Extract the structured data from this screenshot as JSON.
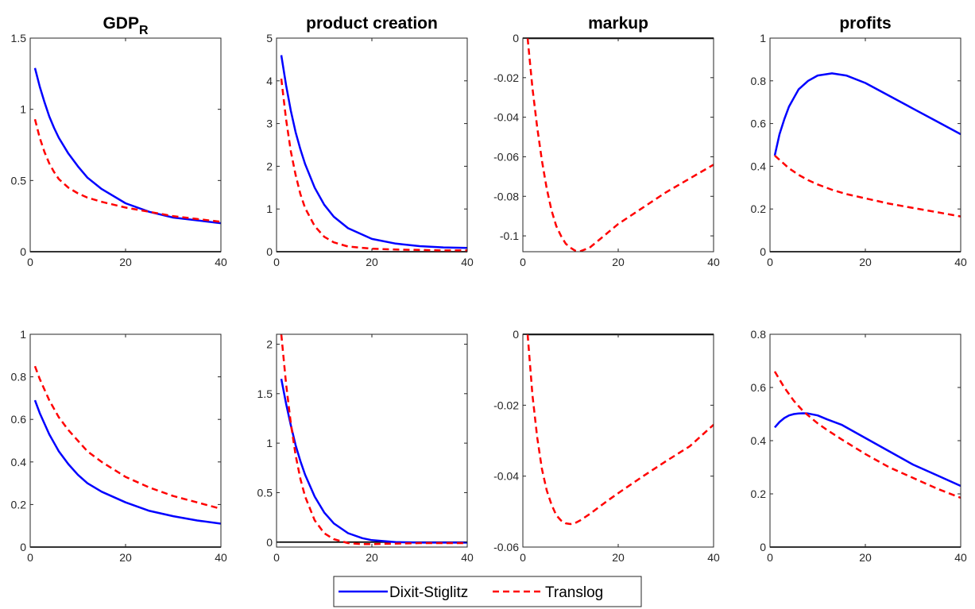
{
  "colors": {
    "dixit": "#0000FF",
    "translog": "#FF0000",
    "zero_line": "#000000",
    "axes": "#262626"
  },
  "legend": {
    "placement": "bottom-center",
    "entries": [
      {
        "label": "Dixit-Stiglitz",
        "color": "#0000FF",
        "style": "solid"
      },
      {
        "label": "Translog",
        "color": "#FF0000",
        "style": "dashed"
      }
    ]
  },
  "chart_data": [
    {
      "type": "line",
      "title": "GDP",
      "title_subscript": "R",
      "xlim": [
        0,
        40
      ],
      "ylim": [
        0,
        1.5
      ],
      "yticks": [
        "0",
        "0.5",
        "1",
        "1.5"
      ],
      "xticks": [
        "0",
        "20",
        "40"
      ],
      "x": [
        1,
        2,
        3,
        4,
        5,
        6,
        8,
        10,
        12,
        15,
        20,
        25,
        30,
        35,
        40
      ],
      "series": [
        {
          "name": "Dixit-Stiglitz",
          "values": [
            1.29,
            1.16,
            1.05,
            0.95,
            0.87,
            0.8,
            0.69,
            0.6,
            0.52,
            0.44,
            0.34,
            0.28,
            0.24,
            0.22,
            0.2
          ]
        },
        {
          "name": "Translog",
          "values": [
            0.93,
            0.8,
            0.7,
            0.62,
            0.56,
            0.51,
            0.45,
            0.41,
            0.38,
            0.35,
            0.31,
            0.28,
            0.25,
            0.23,
            0.21
          ]
        }
      ]
    },
    {
      "type": "line",
      "title": "product creation",
      "xlim": [
        0,
        40
      ],
      "ylim": [
        0,
        5
      ],
      "yticks": [
        "0",
        "1",
        "2",
        "3",
        "4",
        "5"
      ],
      "xticks": [
        "0",
        "20",
        "40"
      ],
      "x": [
        1,
        2,
        3,
        4,
        5,
        6,
        8,
        10,
        12,
        15,
        20,
        25,
        30,
        35,
        40
      ],
      "series": [
        {
          "name": "Dixit-Stiglitz",
          "values": [
            4.6,
            3.9,
            3.3,
            2.8,
            2.4,
            2.05,
            1.5,
            1.1,
            0.82,
            0.55,
            0.3,
            0.19,
            0.13,
            0.1,
            0.09
          ]
        },
        {
          "name": "Translog",
          "values": [
            4.05,
            3.1,
            2.35,
            1.8,
            1.35,
            1.02,
            0.6,
            0.35,
            0.22,
            0.12,
            0.07,
            0.05,
            0.04,
            0.03,
            0.03
          ]
        }
      ]
    },
    {
      "type": "line",
      "title": "markup",
      "xlim": [
        0,
        40
      ],
      "ylim": [
        -0.108,
        0
      ],
      "yticks": [
        "-0.1",
        "-0.08",
        "-0.06",
        "-0.04",
        "-0.02",
        "0"
      ],
      "ytick_values": [
        -0.1,
        -0.08,
        -0.06,
        -0.04,
        -0.02,
        0
      ],
      "xticks": [
        "0",
        "20",
        "40"
      ],
      "x": [
        1,
        2,
        3,
        4,
        5,
        6,
        7,
        8,
        9,
        10,
        11,
        12,
        14,
        16,
        18,
        20,
        25,
        30,
        35,
        40
      ],
      "series": [
        {
          "name": "Dixit-Stiglitz",
          "values": [
            0,
            0,
            0,
            0,
            0,
            0,
            0,
            0,
            0,
            0,
            0,
            0,
            0,
            0,
            0,
            0,
            0,
            0,
            0,
            0
          ]
        },
        {
          "name": "Translog",
          "values": [
            0,
            -0.025,
            -0.045,
            -0.062,
            -0.076,
            -0.087,
            -0.095,
            -0.1,
            -0.104,
            -0.106,
            -0.1075,
            -0.1078,
            -0.106,
            -0.102,
            -0.098,
            -0.094,
            -0.086,
            -0.078,
            -0.071,
            -0.064
          ]
        }
      ]
    },
    {
      "type": "line",
      "title": "profits",
      "xlim": [
        0,
        40
      ],
      "ylim": [
        0,
        1
      ],
      "yticks": [
        "0",
        "0.2",
        "0.4",
        "0.6",
        "0.8",
        "1"
      ],
      "xticks": [
        "0",
        "20",
        "40"
      ],
      "x": [
        1,
        2,
        3,
        4,
        5,
        6,
        8,
        10,
        13,
        16,
        20,
        25,
        30,
        35,
        40
      ],
      "series": [
        {
          "name": "Dixit-Stiglitz",
          "values": [
            0.45,
            0.55,
            0.62,
            0.68,
            0.72,
            0.76,
            0.8,
            0.825,
            0.835,
            0.825,
            0.79,
            0.73,
            0.67,
            0.61,
            0.55
          ]
        },
        {
          "name": "Translog",
          "values": [
            0.45,
            0.43,
            0.41,
            0.39,
            0.375,
            0.36,
            0.335,
            0.315,
            0.29,
            0.27,
            0.25,
            0.225,
            0.205,
            0.185,
            0.165
          ]
        }
      ]
    },
    {
      "type": "line",
      "title": "",
      "xlim": [
        0,
        40
      ],
      "ylim": [
        0,
        1
      ],
      "yticks": [
        "0",
        "0.2",
        "0.4",
        "0.6",
        "0.8",
        "1"
      ],
      "xticks": [
        "0",
        "20",
        "40"
      ],
      "x": [
        1,
        2,
        3,
        4,
        5,
        6,
        8,
        10,
        12,
        15,
        20,
        25,
        30,
        35,
        40
      ],
      "series": [
        {
          "name": "Dixit-Stiglitz",
          "values": [
            0.69,
            0.63,
            0.58,
            0.53,
            0.49,
            0.45,
            0.39,
            0.34,
            0.3,
            0.26,
            0.21,
            0.17,
            0.145,
            0.125,
            0.11
          ]
        },
        {
          "name": "Translog",
          "values": [
            0.85,
            0.79,
            0.74,
            0.69,
            0.65,
            0.61,
            0.55,
            0.5,
            0.45,
            0.4,
            0.33,
            0.28,
            0.24,
            0.21,
            0.18
          ]
        }
      ]
    },
    {
      "type": "line",
      "title": "",
      "xlim": [
        0,
        40
      ],
      "ylim": [
        -0.05,
        2.1
      ],
      "yticks": [
        "0",
        "0.5",
        "1",
        "1.5",
        "2"
      ],
      "ytick_values": [
        0,
        0.5,
        1,
        1.5,
        2
      ],
      "xticks": [
        "0",
        "20",
        "40"
      ],
      "x": [
        1,
        2,
        3,
        4,
        5,
        6,
        8,
        10,
        12,
        15,
        18,
        20,
        25,
        30,
        35,
        40
      ],
      "series": [
        {
          "name": "Dixit-Stiglitz",
          "values": [
            1.65,
            1.4,
            1.18,
            0.98,
            0.82,
            0.68,
            0.46,
            0.3,
            0.19,
            0.09,
            0.04,
            0.02,
            0.0,
            -0.005,
            -0.005,
            -0.005
          ]
        },
        {
          "name": "Translog",
          "values": [
            2.1,
            1.6,
            1.2,
            0.88,
            0.64,
            0.46,
            0.22,
            0.09,
            0.03,
            -0.01,
            -0.02,
            -0.02,
            -0.015,
            -0.01,
            -0.01,
            -0.01
          ]
        }
      ]
    },
    {
      "type": "line",
      "title": "",
      "xlim": [
        0,
        40
      ],
      "ylim": [
        -0.06,
        0
      ],
      "yticks": [
        "-0.06",
        "-0.04",
        "-0.02",
        "0"
      ],
      "ytick_values": [
        -0.06,
        -0.04,
        -0.02,
        0
      ],
      "xticks": [
        "0",
        "20",
        "40"
      ],
      "x": [
        1,
        2,
        3,
        4,
        5,
        6,
        7,
        8,
        9,
        10,
        11,
        12,
        14,
        16,
        18,
        20,
        25,
        30,
        35,
        40
      ],
      "series": [
        {
          "name": "Dixit-Stiglitz",
          "values": [
            0,
            0,
            0,
            0,
            0,
            0,
            0,
            0,
            0,
            0,
            0,
            0,
            0,
            0,
            0,
            0,
            0,
            0,
            0,
            0
          ]
        },
        {
          "name": "Translog",
          "values": [
            0,
            -0.017,
            -0.029,
            -0.038,
            -0.044,
            -0.048,
            -0.051,
            -0.0525,
            -0.0533,
            -0.0535,
            -0.0532,
            -0.0525,
            -0.0507,
            -0.0487,
            -0.0467,
            -0.0448,
            -0.0402,
            -0.0358,
            -0.0316,
            -0.0255
          ]
        }
      ]
    },
    {
      "type": "line",
      "title": "",
      "xlim": [
        0,
        40
      ],
      "ylim": [
        0,
        0.8
      ],
      "yticks": [
        "0",
        "0.2",
        "0.4",
        "0.6",
        "0.8"
      ],
      "xticks": [
        "0",
        "20",
        "40"
      ],
      "x": [
        1,
        2,
        3,
        4,
        5,
        6,
        7,
        8,
        10,
        12,
        15,
        20,
        25,
        30,
        35,
        40
      ],
      "series": [
        {
          "name": "Dixit-Stiglitz",
          "values": [
            0.45,
            0.47,
            0.485,
            0.495,
            0.5,
            0.502,
            0.503,
            0.502,
            0.495,
            0.48,
            0.46,
            0.41,
            0.36,
            0.31,
            0.27,
            0.23
          ]
        },
        {
          "name": "Translog",
          "values": [
            0.66,
            0.63,
            0.6,
            0.575,
            0.55,
            0.53,
            0.51,
            0.495,
            0.465,
            0.44,
            0.405,
            0.35,
            0.3,
            0.26,
            0.22,
            0.185
          ]
        }
      ]
    }
  ]
}
